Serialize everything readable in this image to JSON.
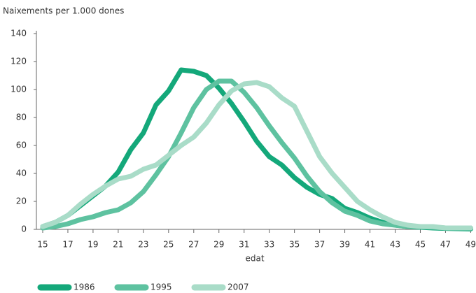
{
  "chart_data": {
    "type": "line",
    "ylabel": "Naixements per 1.000 dones",
    "xlabel": "edat",
    "x": [
      15,
      16,
      17,
      18,
      19,
      20,
      21,
      22,
      23,
      24,
      25,
      26,
      27,
      28,
      29,
      30,
      31,
      32,
      33,
      34,
      35,
      36,
      37,
      38,
      39,
      40,
      41,
      42,
      43,
      44,
      45,
      46,
      47,
      48,
      49
    ],
    "series": [
      {
        "name": "1986",
        "color": "#14a87a",
        "values": [
          2,
          5,
          10,
          17,
          24,
          31,
          41,
          57,
          69,
          89,
          99,
          114,
          113,
          110,
          101,
          90,
          77,
          63,
          52,
          46,
          37,
          30,
          25,
          22,
          15,
          12,
          8,
          5,
          3,
          2,
          1.5,
          1,
          0.7,
          0.5,
          0.3
        ]
      },
      {
        "name": "1995",
        "color": "#5ec2a0",
        "values": [
          1,
          2,
          4,
          7,
          9,
          12,
          14,
          19,
          27,
          39,
          52,
          69,
          87,
          100,
          106,
          106,
          98,
          87,
          74,
          62,
          51,
          38,
          27,
          19,
          13,
          10,
          6,
          4,
          3,
          2,
          2,
          1.5,
          1,
          1,
          1
        ]
      },
      {
        "name": "2007",
        "color": "#a9dcc8",
        "values": [
          2,
          5,
          10,
          18,
          25,
          31,
          36,
          38,
          43,
          46,
          53,
          60,
          66,
          76,
          89,
          99,
          104,
          105,
          102,
          94,
          88,
          70,
          52,
          40,
          30,
          20,
          14,
          9,
          5,
          3,
          2,
          2,
          1,
          1,
          1
        ]
      }
    ],
    "xlim": [
      14.5,
      49.2
    ],
    "xticks": [
      15,
      17,
      19,
      21,
      23,
      25,
      27,
      29,
      31,
      33,
      35,
      37,
      39,
      41,
      43,
      45,
      47,
      49
    ],
    "ylim": [
      0,
      140
    ],
    "yticks": [
      0,
      20,
      40,
      60,
      80,
      100,
      120,
      140
    ],
    "legend": "bottom"
  }
}
